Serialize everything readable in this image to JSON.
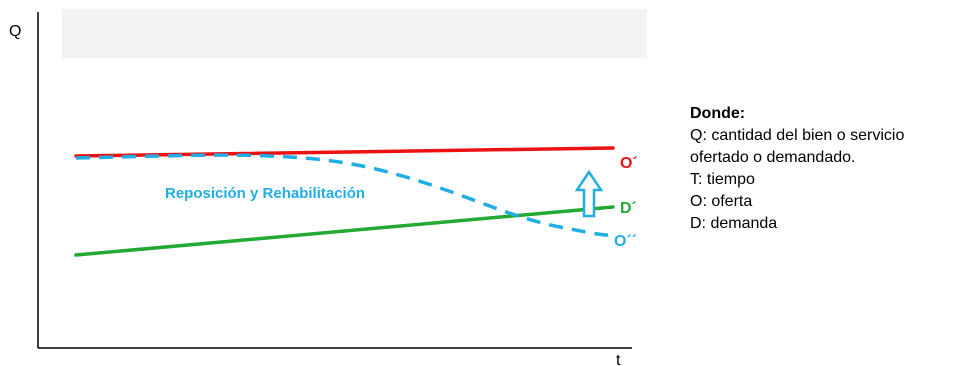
{
  "axes": {
    "y_label": "Q",
    "x_label": "t"
  },
  "curves": {
    "supply": {
      "label": "O´",
      "color": "#ee1111"
    },
    "demand": {
      "label": "D´",
      "color": "#22aa33"
    },
    "supply_degraded": {
      "label": "O´´",
      "color": "#22aee4"
    }
  },
  "annotation": {
    "text": "Reposición y Rehabilitación",
    "color": "#22aee4"
  },
  "legend": {
    "title": "Donde:",
    "lines": [
      "Q: cantidad del bien o servicio",
      "ofertado o demandado.",
      "T: tiempo",
      "O: oferta",
      "D: demanda"
    ]
  },
  "colors": {
    "axis": "#000000",
    "band": "#f2f2f2"
  }
}
